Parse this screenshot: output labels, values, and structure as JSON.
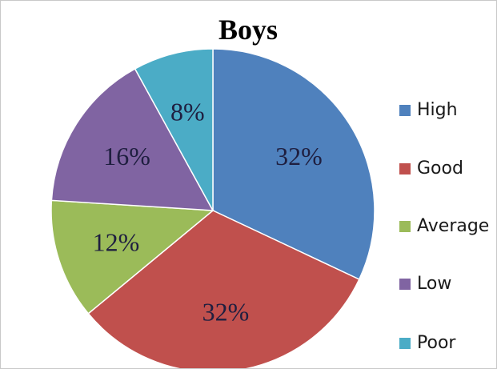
{
  "chart_data": {
    "type": "pie",
    "title": "Boys",
    "legend_position": "right",
    "slices": [
      {
        "label": "High",
        "value": 32,
        "display": "32%",
        "color": "#4f81bd"
      },
      {
        "label": "Good",
        "value": 32,
        "display": "32%",
        "color": "#c0504d"
      },
      {
        "label": "Average",
        "value": 12,
        "display": "12%",
        "color": "#9bbb59"
      },
      {
        "label": "Low",
        "value": 16,
        "display": "16%",
        "color": "#8064a2"
      },
      {
        "label": "Poor",
        "value": 8,
        "display": "8%",
        "color": "#4bacc6"
      }
    ]
  }
}
